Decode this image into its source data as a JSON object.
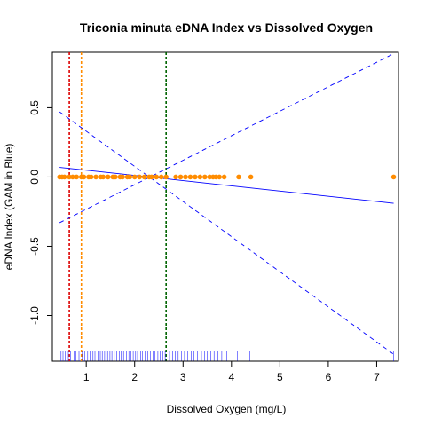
{
  "chart_data": {
    "type": "scatter",
    "title": "Triconia minuta eDNA Index vs Dissolved Oxygen",
    "xlabel": "Dissolved Oxygen (mg/L)",
    "ylabel": "eDNA Index (GAM in Blue)",
    "xlim": [
      0.3,
      7.45
    ],
    "ylim": [
      -1.33,
      0.9
    ],
    "x_ticks": [
      1,
      2,
      3,
      4,
      5,
      6,
      7
    ],
    "y_ticks": [
      -1.0,
      -0.5,
      0.0,
      0.5
    ],
    "y_tick_labels": [
      "-1.0",
      "-0.5",
      "0.0",
      "0.5"
    ],
    "grid": false,
    "points": {
      "color": "#ff8c00",
      "x": [
        0.45,
        0.5,
        0.55,
        0.65,
        0.72,
        0.8,
        0.9,
        0.95,
        1.05,
        1.1,
        1.2,
        1.3,
        1.35,
        1.45,
        1.55,
        1.6,
        1.7,
        1.75,
        1.85,
        1.9,
        2.0,
        2.1,
        2.2,
        2.3,
        2.35,
        2.45,
        2.55,
        2.65,
        2.85,
        2.95,
        3.05,
        3.15,
        3.25,
        3.35,
        3.45,
        3.55,
        3.62,
        3.68,
        3.75,
        3.85,
        4.15,
        4.4,
        7.35
      ],
      "y": [
        0,
        0,
        0,
        0,
        0,
        0,
        0,
        0,
        0,
        0,
        0,
        0,
        0,
        0,
        0,
        0,
        0,
        0,
        0,
        0,
        0,
        0,
        0,
        0,
        0,
        0,
        0,
        0,
        0,
        0,
        0,
        0,
        0,
        0,
        0,
        0,
        0,
        0,
        0,
        0,
        0,
        0,
        0
      ]
    },
    "fit_line": {
      "color": "#0000ff",
      "x": [
        0.45,
        7.35
      ],
      "y": [
        0.07,
        -0.19
      ]
    },
    "ci_lines": [
      {
        "color": "#0000ff",
        "style": "dashed",
        "x": [
          0.45,
          7.35
        ],
        "y": [
          -0.33,
          0.89
        ]
      },
      {
        "color": "#0000ff",
        "style": "dashed",
        "x": [
          0.45,
          7.35
        ],
        "y": [
          0.47,
          -1.28
        ]
      }
    ],
    "vlines": [
      {
        "x": 0.65,
        "color": "#dd0000"
      },
      {
        "x": 0.9,
        "color": "#ff8c00"
      },
      {
        "x": 2.65,
        "color": "#006400"
      }
    ],
    "rug": {
      "color": "#0000ff",
      "x": [
        0.48,
        0.52,
        0.57,
        0.63,
        0.68,
        0.75,
        0.79,
        0.85,
        0.92,
        0.97,
        1.03,
        1.08,
        1.14,
        1.18,
        1.24,
        1.29,
        1.33,
        1.38,
        1.44,
        1.49,
        1.53,
        1.58,
        1.63,
        1.68,
        1.72,
        1.77,
        1.83,
        1.88,
        1.92,
        1.97,
        2.02,
        2.06,
        2.12,
        2.16,
        2.22,
        2.27,
        2.33,
        2.38,
        2.42,
        2.48,
        2.53,
        2.58,
        2.63,
        2.72,
        2.78,
        2.84,
        2.9,
        2.97,
        3.03,
        3.1,
        3.17,
        3.22,
        3.3,
        3.38,
        3.44,
        3.5,
        3.57,
        3.64,
        3.72,
        3.8,
        3.9,
        4.12,
        4.38,
        7.35
      ]
    }
  }
}
